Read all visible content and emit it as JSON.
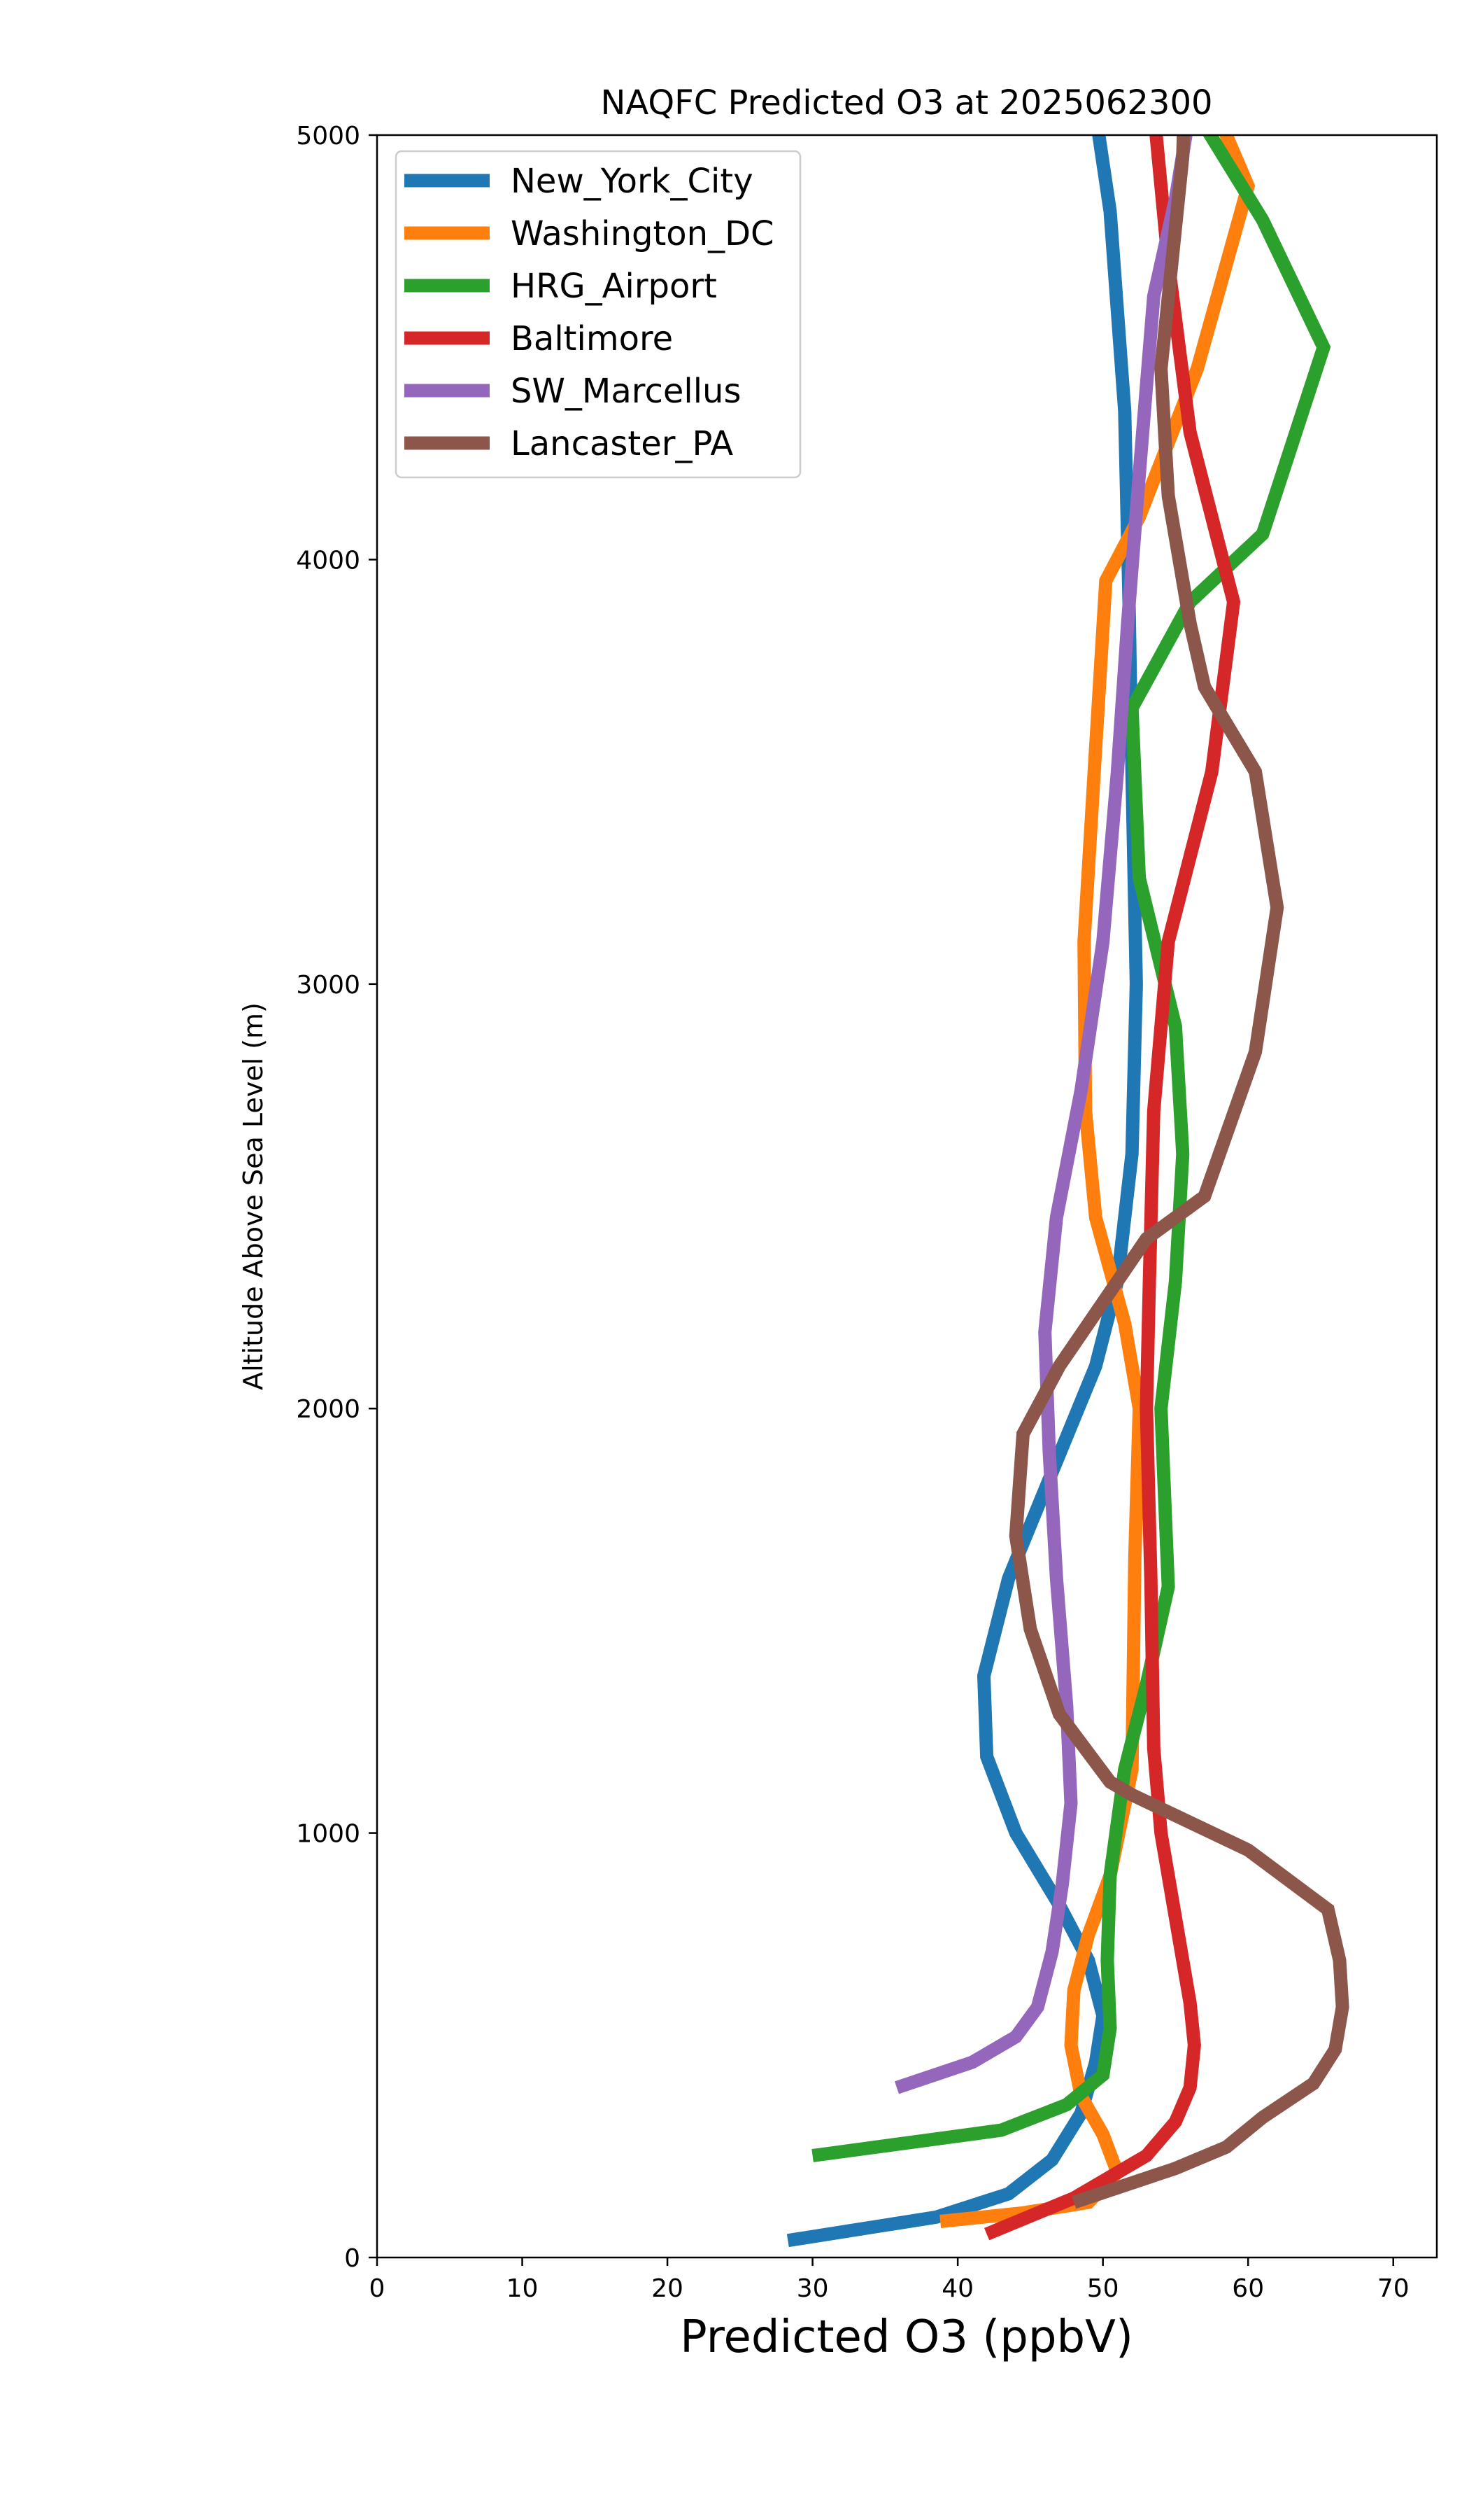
{
  "chart_data": {
    "type": "line",
    "title": "NAQFC Predicted O3 at 2025062300",
    "xlabel": "Predicted O3 (ppbV)",
    "ylabel": "Altitude Above Sea Level (m)",
    "xlim": [
      0,
      73
    ],
    "ylim": [
      0,
      5000
    ],
    "xticks": [
      0,
      10,
      20,
      30,
      40,
      50,
      60,
      70
    ],
    "yticks": [
      0,
      1000,
      2000,
      3000,
      4000,
      5000
    ],
    "legend_position": "top-left",
    "grid": false,
    "series": [
      {
        "name": "New_York_City",
        "color": "#1f77b4",
        "points": [
          [
            28.3,
            40
          ],
          [
            38.5,
            95
          ],
          [
            43.5,
            150
          ],
          [
            46.5,
            230
          ],
          [
            48.5,
            340
          ],
          [
            49.5,
            460
          ],
          [
            50,
            570
          ],
          [
            49,
            700
          ],
          [
            47,
            830
          ],
          [
            44,
            1000
          ],
          [
            42,
            1180
          ],
          [
            41.8,
            1370
          ],
          [
            43.5,
            1600
          ],
          [
            46.5,
            1850
          ],
          [
            49.5,
            2100
          ],
          [
            51,
            2300
          ],
          [
            52,
            2600
          ],
          [
            52.3,
            3000
          ],
          [
            52,
            3500
          ],
          [
            51.8,
            3900
          ],
          [
            51.5,
            4350
          ],
          [
            50.5,
            4820
          ],
          [
            49.5,
            5050
          ]
        ]
      },
      {
        "name": "Washington_DC",
        "color": "#ff7f0e",
        "points": [
          [
            38.8,
            85
          ],
          [
            44.5,
            105
          ],
          [
            49,
            130
          ],
          [
            51,
            200
          ],
          [
            50,
            290
          ],
          [
            48.5,
            380
          ],
          [
            47.8,
            500
          ],
          [
            48,
            630
          ],
          [
            49,
            760
          ],
          [
            50.5,
            900
          ],
          [
            52,
            1150
          ],
          [
            52.2,
            1650
          ],
          [
            52.5,
            2000
          ],
          [
            51.5,
            2200
          ],
          [
            49.5,
            2450
          ],
          [
            48.8,
            2700
          ],
          [
            48.7,
            3100
          ],
          [
            49.4,
            3500
          ],
          [
            50.2,
            3950
          ],
          [
            52.5,
            4100
          ],
          [
            56.5,
            4450
          ],
          [
            60,
            4880
          ],
          [
            57.5,
            5080
          ]
        ]
      },
      {
        "name": "HRG_Airport",
        "color": "#2ca02c",
        "points": [
          [
            30,
            240
          ],
          [
            43,
            300
          ],
          [
            47.5,
            360
          ],
          [
            50,
            430
          ],
          [
            50.5,
            540
          ],
          [
            50.3,
            700
          ],
          [
            50.5,
            900
          ],
          [
            51.5,
            1150
          ],
          [
            53,
            1350
          ],
          [
            54.5,
            1580
          ],
          [
            54,
            2000
          ],
          [
            55,
            2300
          ],
          [
            55.5,
            2600
          ],
          [
            55,
            2900
          ],
          [
            52.5,
            3250
          ],
          [
            52,
            3650
          ],
          [
            56,
            3900
          ],
          [
            61,
            4060
          ],
          [
            65.2,
            4500
          ],
          [
            61,
            4800
          ],
          [
            56.5,
            5050
          ]
        ]
      },
      {
        "name": "Baltimore",
        "color": "#d62728",
        "points": [
          [
            42,
            55
          ],
          [
            48,
            140
          ],
          [
            53,
            240
          ],
          [
            55,
            320
          ],
          [
            56,
            400
          ],
          [
            56.3,
            500
          ],
          [
            56,
            600
          ],
          [
            55,
            800
          ],
          [
            54,
            1000
          ],
          [
            53.5,
            1200
          ],
          [
            53.3,
            1600
          ],
          [
            53,
            2000
          ],
          [
            53.2,
            2300
          ],
          [
            53.5,
            2700
          ],
          [
            54.5,
            3100
          ],
          [
            57.5,
            3500
          ],
          [
            59,
            3900
          ],
          [
            56,
            4300
          ],
          [
            54.5,
            4700
          ],
          [
            53.5,
            5060
          ]
        ]
      },
      {
        "name": "SW_Marcellus",
        "color": "#9467bd",
        "points": [
          [
            35.8,
            400
          ],
          [
            41,
            460
          ],
          [
            44,
            520
          ],
          [
            45.5,
            590
          ],
          [
            46.5,
            720
          ],
          [
            47.2,
            880
          ],
          [
            47.8,
            1070
          ],
          [
            47.5,
            1300
          ],
          [
            46.8,
            1600
          ],
          [
            46.3,
            1900
          ],
          [
            46,
            2180
          ],
          [
            46.8,
            2450
          ],
          [
            48.5,
            2750
          ],
          [
            50,
            3100
          ],
          [
            51,
            3500
          ],
          [
            51.7,
            3850
          ],
          [
            52.5,
            4200
          ],
          [
            53.5,
            4620
          ],
          [
            55,
            4850
          ],
          [
            56,
            5060
          ]
        ]
      },
      {
        "name": "Lancaster_PA",
        "color": "#8c564b",
        "points": [
          [
            48,
            130
          ],
          [
            55,
            210
          ],
          [
            58.5,
            260
          ],
          [
            61,
            330
          ],
          [
            64.5,
            410
          ],
          [
            66,
            490
          ],
          [
            66.5,
            590
          ],
          [
            66.3,
            700
          ],
          [
            65.5,
            820
          ],
          [
            60,
            960
          ],
          [
            52,
            1090
          ],
          [
            50.5,
            1120
          ],
          [
            47,
            1280
          ],
          [
            45,
            1480
          ],
          [
            44,
            1700
          ],
          [
            44.5,
            1940
          ],
          [
            47,
            2100
          ],
          [
            50,
            2250
          ],
          [
            53,
            2400
          ],
          [
            57,
            2500
          ],
          [
            60.5,
            2840
          ],
          [
            62,
            3180
          ],
          [
            60.5,
            3500
          ],
          [
            57,
            3700
          ],
          [
            56,
            3850
          ],
          [
            54.5,
            4150
          ],
          [
            54,
            4450
          ],
          [
            55.5,
            4950
          ],
          [
            55.6,
            5060
          ]
        ]
      }
    ]
  }
}
